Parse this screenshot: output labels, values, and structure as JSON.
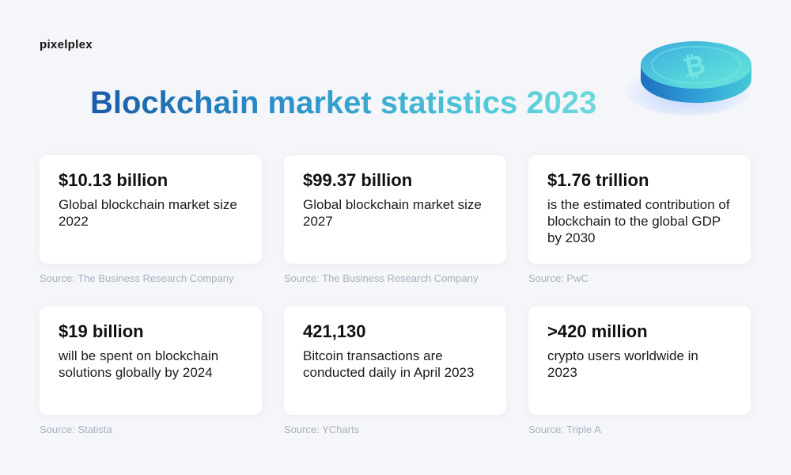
{
  "brand": {
    "logo_text": "pixelplex"
  },
  "header": {
    "title": "Blockchain market statistics 2023"
  },
  "coin": {
    "symbol": "₿"
  },
  "stats": [
    {
      "value": "$10.13 billion",
      "description": "Global blockchain market size 2022",
      "source": "Source: The Business Research Company"
    },
    {
      "value": "$99.37 billion",
      "description": "Global blockchain market size 2027",
      "source": "Source: The Business Research Company"
    },
    {
      "value": "$1.76 trillion",
      "description": "is the estimated contribution of blockchain to the global GDP by 2030",
      "source": "Source: PwC"
    },
    {
      "value": "$19 billion",
      "description": "will be spent on blockchain solutions globally by 2024",
      "source": "Source: Statista"
    },
    {
      "value": "421,130",
      "description": "Bitcoin transactions are conducted daily in April 2023",
      "source": "Source: YCharts"
    },
    {
      "value": ">420 million",
      "description": "crypto users worldwide in 2023",
      "source": "Source: Triple A"
    }
  ],
  "colors": {
    "background": "#f5f6fa",
    "title_gradient_start": "#1a5ca8",
    "title_gradient_end": "#6fd9dc",
    "coin_light": "#5fe0de",
    "coin_dark": "#2a7fc9",
    "source_text": "#a9afbf"
  }
}
